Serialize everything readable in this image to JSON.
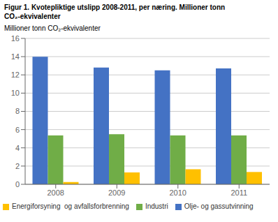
{
  "chart_data": {
    "type": "bar",
    "title": "Figur 1. Kvotepliktige utslipp 2008-2011, per næring. Millioner tonn\nCO₂-ekvivalenter",
    "ylabel": "Millioner tonn CO₂-ekvivalenter",
    "categories": [
      "2008",
      "2009",
      "2010",
      "2011"
    ],
    "series": [
      {
        "name": "Olje- og gassutvinning",
        "color": "#4472c4",
        "values": [
          14.0,
          12.8,
          12.5,
          12.7
        ]
      },
      {
        "name": "Industri",
        "color": "#70ad47",
        "values": [
          5.35,
          5.5,
          5.35,
          5.35
        ]
      },
      {
        "name": "Energiforsyning  og avfallsforbrenning",
        "color": "#ffc000",
        "values": [
          0.25,
          1.3,
          1.65,
          1.35
        ]
      }
    ],
    "ylim": [
      0,
      16
    ],
    "yticks": [
      0,
      2,
      4,
      6,
      8,
      10,
      12,
      14,
      16
    ],
    "grid": true,
    "legend": "lower left"
  }
}
